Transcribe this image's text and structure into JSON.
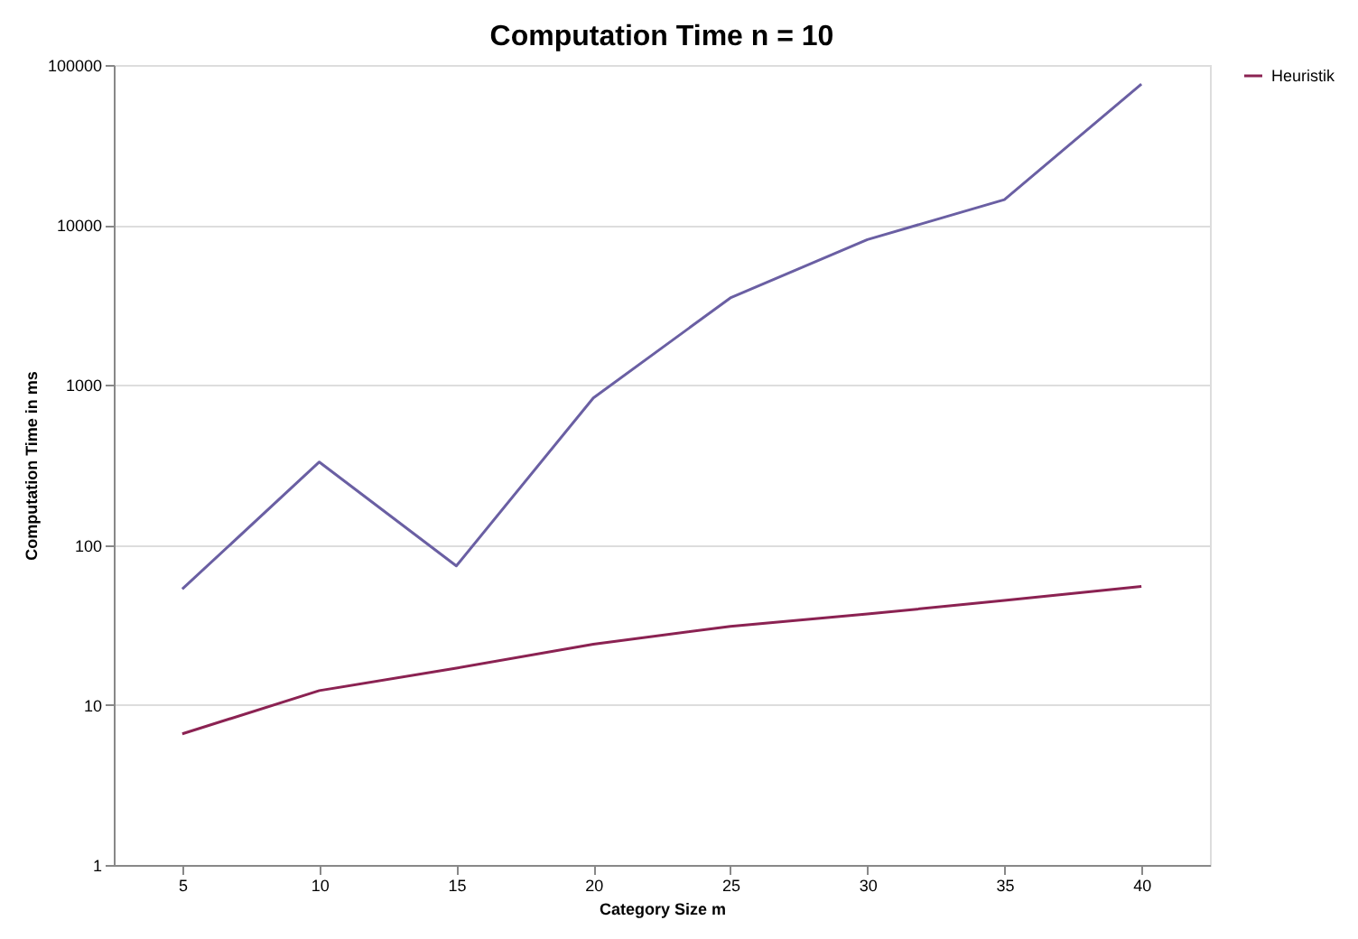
{
  "chart_data": {
    "type": "line",
    "title": "Computation Time n = 10",
    "xlabel": "Category Size m",
    "ylabel": "Computation Time in ms",
    "categories": [
      "5",
      "10",
      "15",
      "20",
      "25",
      "30",
      "35",
      "40"
    ],
    "series": [
      {
        "color": "#6a5fa3",
        "values": [
          53,
          330,
          74,
          830,
          3500,
          8100,
          14400,
          76000
        ]
      },
      {
        "name": "Heuristik",
        "color": "#8b2252",
        "values": [
          6.6,
          12.3,
          17,
          24,
          31,
          37,
          45,
          55
        ]
      }
    ],
    "log": true,
    "ylim": [
      1,
      100000
    ],
    "yticks": [
      1,
      10,
      100,
      1000,
      10000,
      100000
    ],
    "grid": "y",
    "legend": "right",
    "marker": "none",
    "line_style": "solid"
  }
}
